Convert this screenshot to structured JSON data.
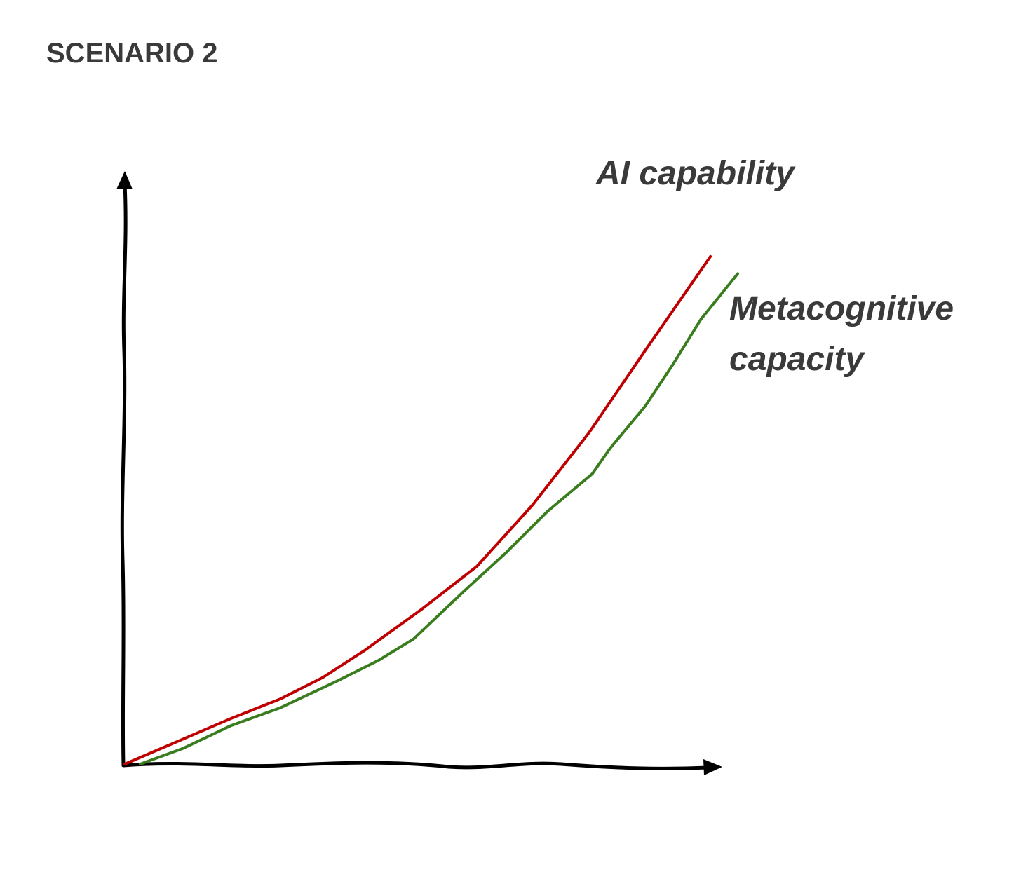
{
  "chart_data": {
    "type": "line",
    "title": "SCENARIO 2",
    "xlim": [
      0,
      105
    ],
    "ylim": [
      0,
      100
    ],
    "series": [
      {
        "name": "AI capability",
        "color": "#c00000",
        "x": [
          0,
          17.9,
          26.2,
          33.3,
          40.4,
          49.8,
          59.3,
          68.7,
          78.2,
          87.6,
          98.6
        ],
        "values": [
          0,
          7.7,
          11.0,
          14.6,
          19.2,
          26.0,
          33.4,
          43.8,
          56.0,
          69.8,
          85.7
        ]
      },
      {
        "name": "Metacognitive capacity",
        "color": "#3a7d1e",
        "x": [
          2.6,
          9.7,
          17.9,
          26.2,
          35.7,
          42.7,
          48.6,
          56.9,
          64.0,
          71.1,
          78.7,
          81.7,
          87.6,
          92.3,
          97.0,
          103.2
        ],
        "values": [
          0,
          2.6,
          6.5,
          9.5,
          14.0,
          17.5,
          21.1,
          29.0,
          35.5,
          42.6,
          49.0,
          53.3,
          60.4,
          67.5,
          75.1,
          82.8
        ]
      }
    ]
  }
}
